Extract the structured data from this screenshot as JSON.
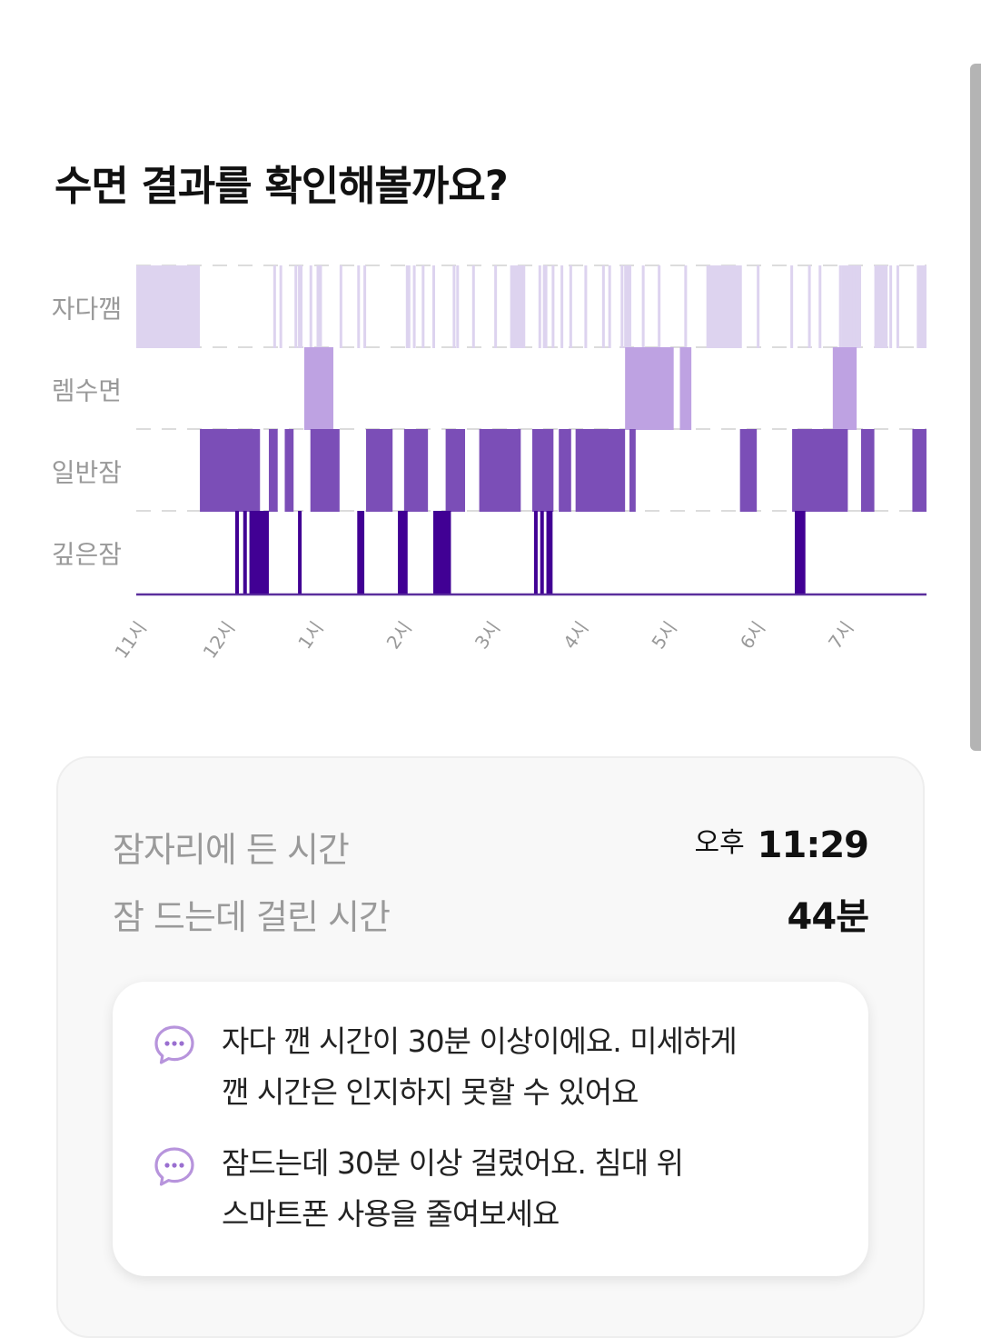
{
  "header": {
    "title": "수면 결과를 확인해볼까요?"
  },
  "chart_data": {
    "type": "hypnogram",
    "stages": [
      "자다깸",
      "렘수면",
      "일반잠",
      "깊은잠"
    ],
    "x_ticks": [
      {
        "label": "11시",
        "h": 23
      },
      {
        "label": "12시",
        "h": 24
      },
      {
        "label": "1시",
        "h": 25
      },
      {
        "label": "2시",
        "h": 26
      },
      {
        "label": "3시",
        "h": 27
      },
      {
        "label": "4시",
        "h": 28
      },
      {
        "label": "5시",
        "h": 29
      },
      {
        "label": "6시",
        "h": 30
      },
      {
        "label": "7시",
        "h": 31
      }
    ],
    "x_range": [
      23.0,
      31.94
    ],
    "colors": {
      "awake": "#ddd3ef",
      "rem": "#bea2e2",
      "light": "#7b4eb7",
      "deep": "#410094",
      "grid": "#dcdcdc",
      "baseline": "#5a2e9c",
      "label": "#999999"
    },
    "segments": [
      {
        "stage": 0,
        "start": 23.0,
        "end": 23.72
      },
      {
        "stage": 1,
        "start": 24.9,
        "end": 25.23
      },
      {
        "stage": 2,
        "start": 23.72,
        "end": 24.4
      },
      {
        "stage": 2,
        "start": 24.5,
        "end": 24.6
      },
      {
        "stage": 2,
        "start": 24.68,
        "end": 24.78
      },
      {
        "stage": 2,
        "start": 24.97,
        "end": 25.3
      },
      {
        "stage": 2,
        "start": 25.6,
        "end": 25.9
      },
      {
        "stage": 2,
        "start": 26.03,
        "end": 26.3
      },
      {
        "stage": 2,
        "start": 26.5,
        "end": 26.72
      },
      {
        "stage": 2,
        "start": 26.88,
        "end": 27.35
      },
      {
        "stage": 2,
        "start": 27.48,
        "end": 27.72
      },
      {
        "stage": 2,
        "start": 27.78,
        "end": 27.92
      },
      {
        "stage": 2,
        "start": 27.97,
        "end": 28.53
      },
      {
        "stage": 2,
        "start": 28.58,
        "end": 28.65
      },
      {
        "stage": 2,
        "start": 29.83,
        "end": 30.02
      },
      {
        "stage": 2,
        "start": 30.42,
        "end": 31.05
      },
      {
        "stage": 2,
        "start": 31.2,
        "end": 31.35
      },
      {
        "stage": 2,
        "start": 31.78,
        "end": 32.35
      },
      {
        "stage": 3,
        "start": 24.12,
        "end": 24.16
      },
      {
        "stage": 3,
        "start": 24.21,
        "end": 24.24
      },
      {
        "stage": 3,
        "start": 24.28,
        "end": 24.5
      },
      {
        "stage": 3,
        "start": 24.83,
        "end": 24.86
      },
      {
        "stage": 3,
        "start": 25.5,
        "end": 25.58
      },
      {
        "stage": 3,
        "start": 25.96,
        "end": 26.07
      },
      {
        "stage": 3,
        "start": 26.36,
        "end": 26.56
      },
      {
        "stage": 3,
        "start": 27.5,
        "end": 27.54
      },
      {
        "stage": 3,
        "start": 27.57,
        "end": 27.59
      },
      {
        "stage": 3,
        "start": 27.64,
        "end": 27.71
      },
      {
        "stage": 3,
        "start": 30.45,
        "end": 30.57
      }
    ],
    "awake_blips": [
      24.55,
      24.62,
      24.79,
      24.83,
      24.85,
      24.96,
      25.04,
      25.07,
      25.3,
      25.5,
      25.57,
      26.05,
      26.07,
      26.13,
      26.23,
      26.35,
      26.58,
      26.62,
      26.8,
      27.05,
      27.37,
      27.55,
      27.6,
      27.62,
      27.7,
      27.8,
      27.9,
      28.07,
      28.27,
      28.34,
      28.48,
      28.72,
      28.9,
      29.2,
      29.58,
      29.82,
      30.02,
      30.4,
      30.6,
      30.72,
      30.95,
      31.1,
      31.38,
      31.52,
      31.6
    ],
    "awake_blocks": [
      {
        "start": 27.23,
        "end": 27.38
      },
      {
        "start": 28.52,
        "end": 28.6
      },
      {
        "start": 29.45,
        "end": 29.85
      },
      {
        "start": 30.98,
        "end": 31.2
      },
      {
        "start": 31.35,
        "end": 31.5
      },
      {
        "start": 31.83,
        "end": 31.94
      }
    ],
    "rem_blocks": [
      {
        "start": 28.53,
        "end": 29.08
      },
      {
        "start": 29.15,
        "end": 29.28
      },
      {
        "start": 30.88,
        "end": 31.15
      }
    ],
    "deep_blocks": [
      {
        "start": 26.38,
        "end": 26.55
      }
    ]
  },
  "summary": {
    "bedtime_label": "잠자리에 든 시간",
    "bedtime_ampm": "오후",
    "bedtime_value": "11:29",
    "latency_label": "잠 드는데 걸린 시간",
    "latency_value": "44분"
  },
  "tips": [
    {
      "icon": "chat-bubble-icon",
      "line1": "자다 깬 시간이 30분 이상이에요. 미세하게",
      "line2": "깬 시간은 인지하지 못할 수 있어요"
    },
    {
      "icon": "chat-bubble-icon",
      "line1": "잠드는데 30분 이상 걸렸어요. 침대 위",
      "line2": "스마트폰 사용을 줄여보세요"
    }
  ]
}
